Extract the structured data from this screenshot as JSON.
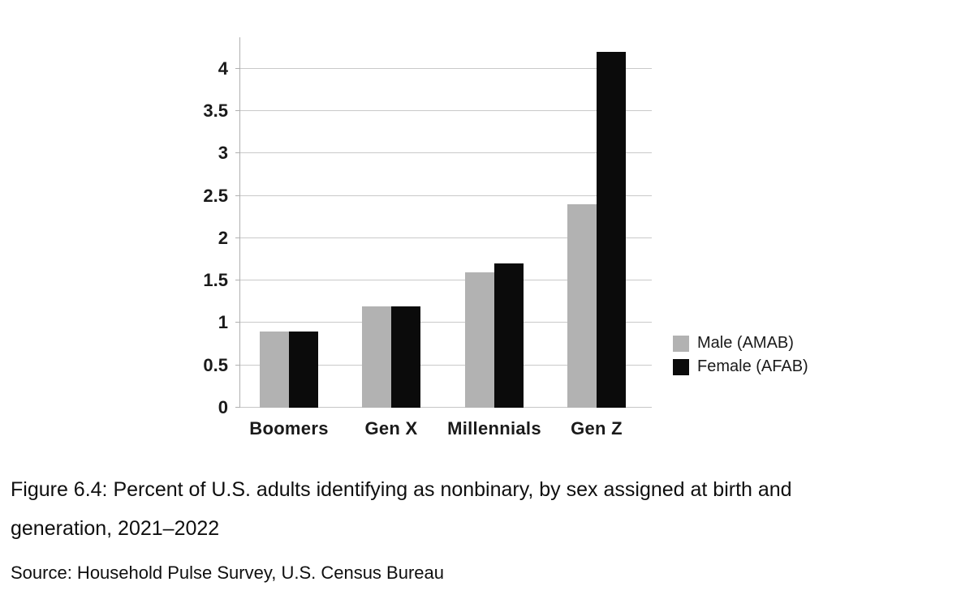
{
  "figure": {
    "caption": {
      "text": "Figure 6.4: Percent of U.S. adults identifying as nonbinary, by sex assigned at birth and generation, 2021–2022",
      "line1": "Figure 6.4: Percent of U.S. adults identifying as nonbinary, by sex assigned at birth and",
      "line2": "generation, 2021–2022"
    },
    "source": "Source: Household Pulse Survey, U.S. Census Bureau"
  },
  "chart_data": {
    "type": "bar",
    "title": "",
    "xlabel": "",
    "ylabel": "",
    "categories": [
      "Boomers",
      "Gen X",
      "Millennials",
      "Gen Z"
    ],
    "series": [
      {
        "name": "Male (AMAB)",
        "color": "#b2b2b2",
        "values": [
          0.9,
          1.2,
          1.6,
          2.4
        ]
      },
      {
        "name": "Female (AFAB)",
        "color": "#0b0b0b",
        "values": [
          0.9,
          1.2,
          1.7,
          4.2
        ]
      }
    ],
    "ylim": [
      0,
      4.37
    ],
    "ytick_step": 0.5,
    "yticks": [
      "0",
      "0.5",
      "1",
      "1.5",
      "2",
      "2.5",
      "3",
      "3.5",
      "4"
    ],
    "grid": true,
    "gridline_color": "#c9c9c9",
    "axis_color": "#b0b0b0",
    "text_color": "#1a1a1a",
    "legend_position": "right"
  }
}
